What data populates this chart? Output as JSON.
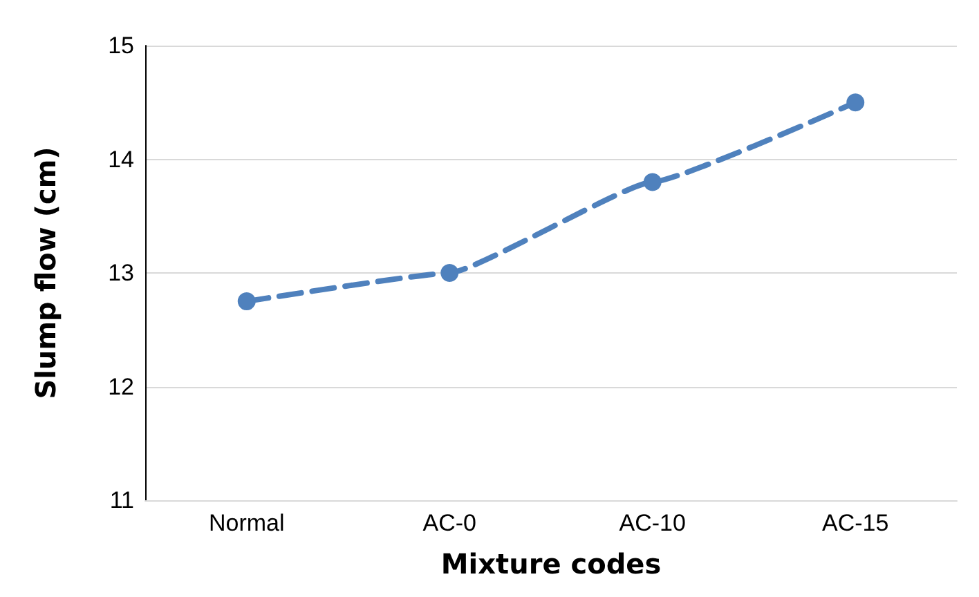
{
  "chart_data": {
    "type": "line",
    "xlabel": "Mixture codes",
    "ylabel": "Slump flow (cm)",
    "categories": [
      "Normal",
      "AC-0",
      "AC-10",
      "AC-15"
    ],
    "series": [
      {
        "color": "#4f81bd",
        "values": [
          12.75,
          13.0,
          13.8,
          14.5
        ]
      }
    ],
    "ylim": [
      11,
      15
    ],
    "yticks": [
      11,
      12,
      13,
      14,
      15
    ],
    "grid": "y",
    "marker": "circle",
    "line_style": "dashed"
  }
}
